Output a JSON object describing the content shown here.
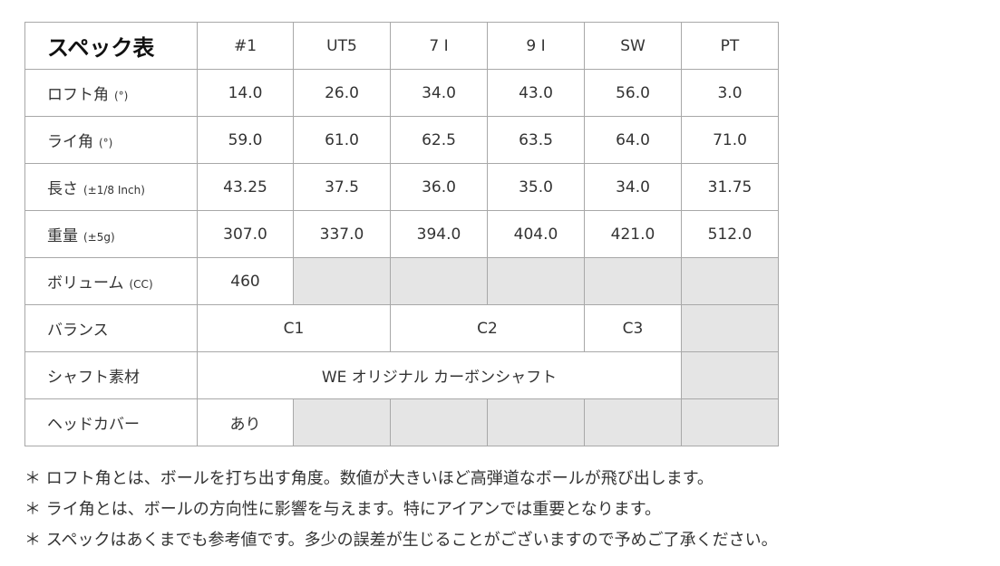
{
  "title": "スペック表",
  "columns": [
    "#1",
    "UT5",
    "7 I",
    "9 I",
    "SW",
    "PT"
  ],
  "rows": {
    "loft": {
      "label": "ロフト角",
      "unit": "(°)",
      "values": [
        "14.0",
        "26.0",
        "34.0",
        "43.0",
        "56.0",
        "3.0"
      ]
    },
    "lie": {
      "label": "ライ角",
      "unit": "(°)",
      "values": [
        "59.0",
        "61.0",
        "62.5",
        "63.5",
        "64.0",
        "71.0"
      ]
    },
    "length": {
      "label": "長さ",
      "unit": "(±1/8 Inch)",
      "values": [
        "43.25",
        "37.5",
        "36.0",
        "35.0",
        "34.0",
        "31.75"
      ]
    },
    "weight": {
      "label": "重量",
      "unit": "(±5g)",
      "values": [
        "307.0",
        "337.0",
        "394.0",
        "404.0",
        "421.0",
        "512.0"
      ]
    },
    "volume": {
      "label": "ボリューム",
      "unit": "(CC)",
      "value": "460"
    },
    "balance": {
      "label": "バランス",
      "values": [
        "C1",
        "C2",
        "C3"
      ]
    },
    "shaft": {
      "label": "シャフト素材",
      "value": "WE オリジナル カーボンシャフト"
    },
    "headcover": {
      "label": "ヘッドカバー",
      "value": "あり"
    }
  },
  "notes": [
    "＊ ロフト角とは、ボールを打ち出す角度。数値が大きいほど高弾道なボールが飛び出します。",
    "＊ ライ角とは、ボールの方向性に影響を与えます。特にアイアンでは重要となります。",
    "＊ スペックはあくまでも参考値です。多少の誤差が生じることがございますので予めご了承ください。"
  ],
  "colors": {
    "border": "#a8a8a8",
    "empty_cell": "#e5e5e5"
  }
}
